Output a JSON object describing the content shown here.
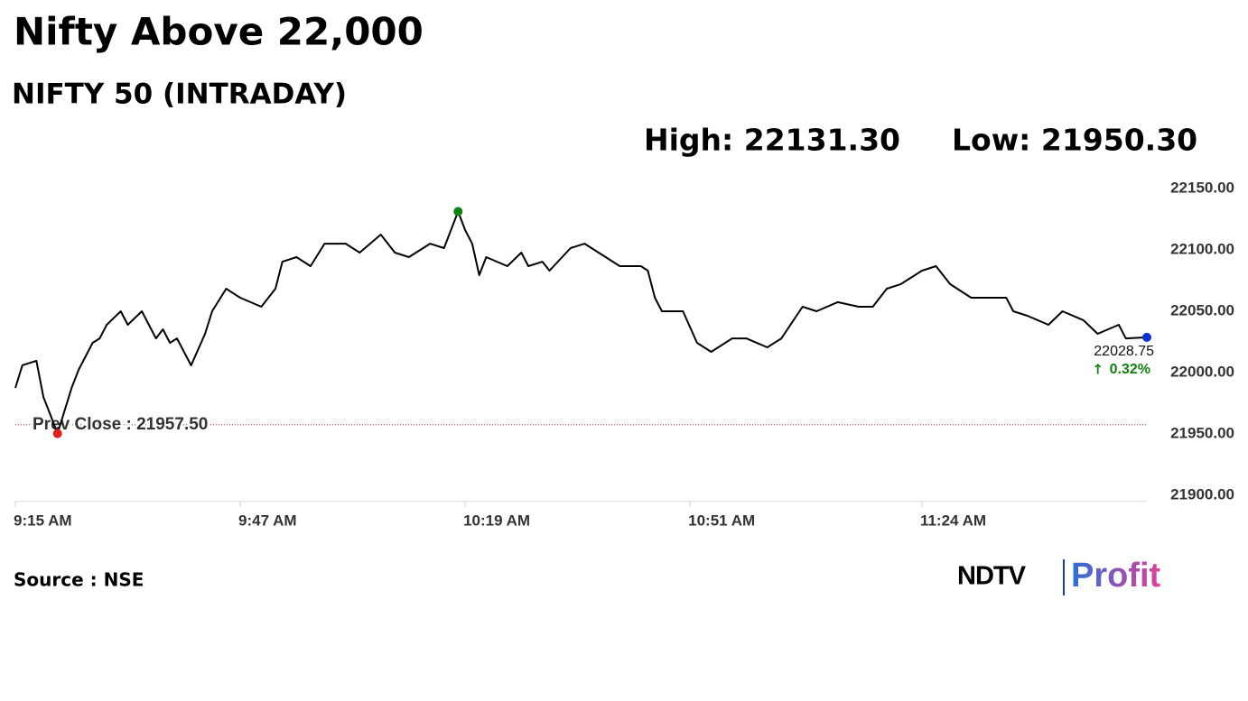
{
  "chart_data": {
    "type": "line",
    "title": "Nifty Above 22,000",
    "subtitle": "NIFTY 50 (INTRADAY)",
    "high_label": "High: 22131.30",
    "low_label": "Low: 21950.30",
    "source": "Source : NSE",
    "logo": {
      "left": "NDTV",
      "right": "Profit"
    },
    "change_label": "0.32%",
    "reference_line": {
      "value": 21957.5,
      "label": "Prev Close : 21957.50",
      "color": "#e02020"
    },
    "x": [
      555,
      556,
      558,
      559,
      560,
      561,
      563,
      564,
      566,
      567,
      568,
      570,
      571,
      573,
      575,
      576,
      577,
      578,
      580,
      582,
      583,
      585,
      587,
      590,
      592,
      593,
      595,
      597,
      599,
      602,
      604,
      607,
      609,
      611,
      614,
      616,
      618,
      619,
      620,
      621,
      622,
      625,
      627,
      628,
      630,
      631,
      634,
      636,
      639,
      641,
      644,
      645,
      646,
      647,
      650,
      652,
      654,
      657,
      659,
      662,
      664,
      667,
      669,
      672,
      675,
      677,
      679,
      681,
      684,
      686,
      688,
      691,
      696,
      697,
      699,
      702,
      704,
      707,
      709,
      712,
      713,
      716
    ],
    "series": [
      {
        "name": "NIFTY 50",
        "color": "#000000",
        "values": [
          21987.5,
          22006,
          22009.6,
          21980.1,
          21965.4,
          21950.3,
          21987.5,
          22002.2,
          22024.3,
          22027.9,
          22039,
          22050,
          22039,
          22050,
          22027.9,
          22035.3,
          22024.3,
          22027.9,
          22005.9,
          22031.6,
          22050,
          22068.4,
          22061,
          22053.7,
          22068.4,
          22090.4,
          22094.1,
          22086.8,
          22105.1,
          22105.1,
          22097.8,
          22112.5,
          22097.8,
          22094.1,
          22105.1,
          22101.5,
          22131.3,
          22116.2,
          22105.1,
          22079.4,
          22094.1,
          22086.8,
          22097.8,
          22086.8,
          22090.4,
          22083.1,
          22101.5,
          22105.1,
          22094.1,
          22086.8,
          22086.8,
          22083.1,
          22061,
          22050,
          22050,
          22024.3,
          22016.9,
          22027.9,
          22027.9,
          22020.6,
          22027.9,
          22053.7,
          22050,
          22057.4,
          22053.7,
          22053.7,
          22068.4,
          22072.1,
          22083.1,
          22086.8,
          22072.1,
          22061,
          22061,
          22050,
          22046.3,
          22039,
          22050,
          22042.6,
          22031.6,
          22039,
          22027.9,
          22028.75
        ]
      }
    ],
    "marker_colors": {
      "high": "#108010",
      "low": "#e02020",
      "last": "#1030d0"
    },
    "xlim": [
      555,
      716
    ],
    "xticks": [
      {
        "value": 555,
        "label": "9:15 AM"
      },
      {
        "value": 587,
        "label": "9:47 AM"
      },
      {
        "value": 619,
        "label": "10:19 AM"
      },
      {
        "value": 651,
        "label": "10:51 AM"
      },
      {
        "value": 684,
        "label": "11:24 AM"
      }
    ],
    "ylim": [
      21895,
      22165
    ],
    "yticks": [
      {
        "value": 21900,
        "label": "21900.00"
      },
      {
        "value": 21950,
        "label": "21950.00"
      },
      {
        "value": 22000,
        "label": "22000.00"
      },
      {
        "value": 22050,
        "label": "22050.00"
      },
      {
        "value": 22100,
        "label": "22100.00"
      },
      {
        "value": 22150,
        "label": "22150.00"
      }
    ]
  }
}
